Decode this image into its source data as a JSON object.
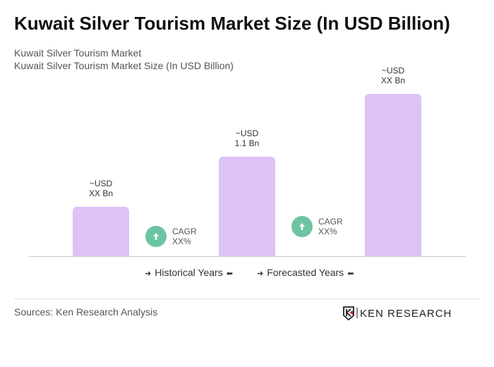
{
  "title": "Kuwait Silver Tourism Market Size (In USD Billion)",
  "subtitle1": "Kuwait Silver Tourism Market",
  "subtitle2": "Kuwait Silver Tourism Market Size (In USD Billion)",
  "chart_data": {
    "type": "bar",
    "categories": [
      "",
      "",
      ""
    ],
    "values": [
      0.55,
      1.1,
      1.8
    ],
    "data_labels": [
      [
        "~USD",
        "XX Bn"
      ],
      [
        "~USD",
        "1.1 Bn"
      ],
      [
        "~USD",
        "XX Bn"
      ]
    ],
    "bar_color": "#dcc2f7",
    "ylim": [
      0,
      1.8
    ],
    "grid": false
  },
  "cagr": [
    {
      "label": "CAGR",
      "value": "XX%"
    },
    {
      "label": "CAGR",
      "value": "XX%"
    }
  ],
  "cagr_color": "#6cc5a2",
  "legend": {
    "historical": "Historical Years",
    "forecasted": "Forecasted Years"
  },
  "source": "Sources: Ken Research Analysis",
  "logo": "KEN RESEARCH"
}
